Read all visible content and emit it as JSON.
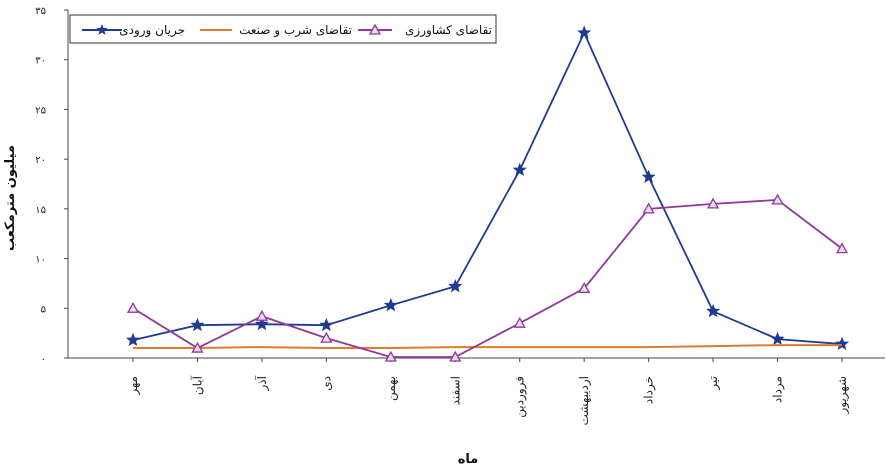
{
  "chart_data": {
    "type": "line",
    "title": "",
    "xlabel": "ماه",
    "ylabel": "میلیون مترمکعب",
    "ylim": [
      0,
      35
    ],
    "yticks": [
      0,
      5,
      10,
      15,
      20,
      25,
      30,
      35
    ],
    "ytick_labels": [
      "۰",
      "۵",
      "۱۰",
      "۱۵",
      "۲۰",
      "۲۵",
      "۳۰",
      "۳۵"
    ],
    "grid": false,
    "legend_position": "top-left",
    "categories": [
      "مهر",
      "آبان",
      "آذر",
      "دی",
      "بهمن",
      "اسفند",
      "فروردین",
      "اردیبهشت",
      "خرداد",
      "تیر",
      "مرداد",
      "شهریور"
    ],
    "series": [
      {
        "name": "جریان ورودی",
        "color": "#1f3a93",
        "marker": "star",
        "values": [
          1.8,
          3.3,
          3.4,
          3.3,
          5.3,
          7.2,
          18.9,
          32.7,
          18.2,
          4.7,
          1.9,
          1.4
        ]
      },
      {
        "name": "تقاضای شرب و صنعت",
        "color": "#e07b2c",
        "marker": "none",
        "values": [
          1.0,
          1.0,
          1.1,
          1.0,
          1.0,
          1.1,
          1.1,
          1.1,
          1.1,
          1.2,
          1.3,
          1.3
        ]
      },
      {
        "name": "تقاضای کشاورزی",
        "color": "#8e3a9a",
        "marker": "triangle",
        "values": [
          5.0,
          1.0,
          4.2,
          2.0,
          0.1,
          0.1,
          3.5,
          7.0,
          15.0,
          15.5,
          15.9,
          11.0
        ]
      }
    ]
  }
}
